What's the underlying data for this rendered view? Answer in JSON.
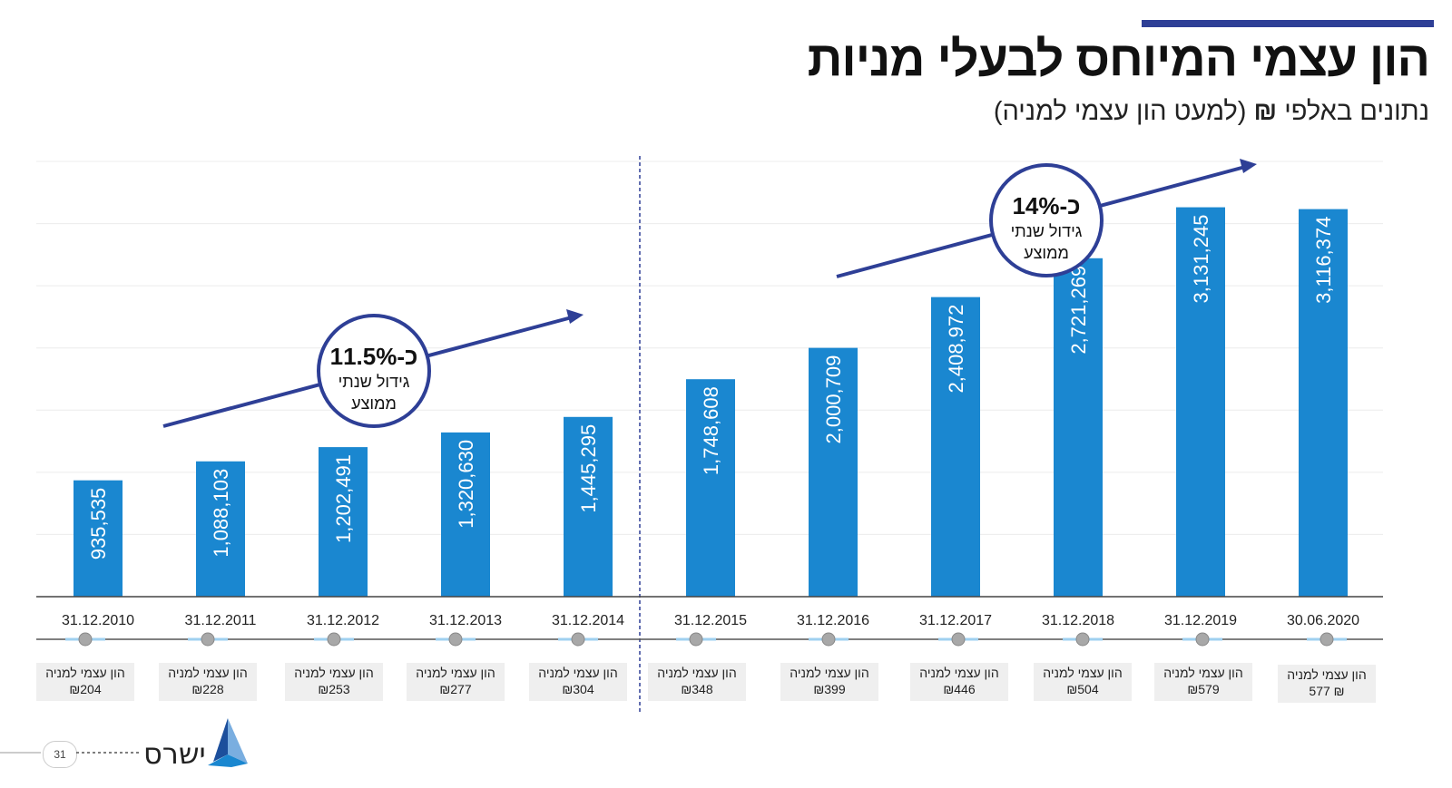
{
  "title": "הון עצמי המיוחס לבעלי מניות",
  "subtitle_prefix": "נתונים באלפי ",
  "subtitle_currency": "₪",
  "subtitle_suffix": " (למעט הון עצמי למניה)",
  "logo_text": "ישרס",
  "page_number": "31",
  "colors": {
    "bar": "#1a87d0",
    "accent": "#2e3f96",
    "top_bar": "#2e3f96"
  },
  "growth_periods": [
    {
      "pct": "11.5%",
      "prefix": "כ-",
      "line1": "גידול שנתי",
      "line2": "ממוצע"
    },
    {
      "pct": "14%",
      "prefix": "כ-",
      "line1": "גידול שנתי",
      "line2": "ממוצע"
    }
  ],
  "chart_data": {
    "type": "bar",
    "categories": [
      "31.12.2010",
      "31.12.2011",
      "31.12.2012",
      "31.12.2013",
      "31.12.2014",
      "31.12.2015",
      "31.12.2016",
      "31.12.2017",
      "31.12.2018",
      "31.12.2019",
      "30.06.2020"
    ],
    "values": [
      935535,
      1088103,
      1202491,
      1320630,
      1445295,
      1748608,
      2000709,
      2408972,
      2721269,
      3131245,
      3116374
    ],
    "value_labels": [
      "935,535",
      "1,088,103",
      "1,202,491",
      "1,320,630",
      "1,445,295",
      "1,748,608",
      "2,000,709",
      "2,408,972",
      "2,721,269",
      "3,131,245",
      "3,116,374"
    ],
    "per_share_label": "הון עצמי למניה",
    "per_share_values": [
      "₪204",
      "₪228",
      "₪253",
      "₪277",
      "₪304",
      "₪348",
      "₪399",
      "₪446",
      "₪504",
      "₪579",
      "₪ 577"
    ],
    "ylim": [
      0,
      3500000
    ],
    "grid": true
  }
}
